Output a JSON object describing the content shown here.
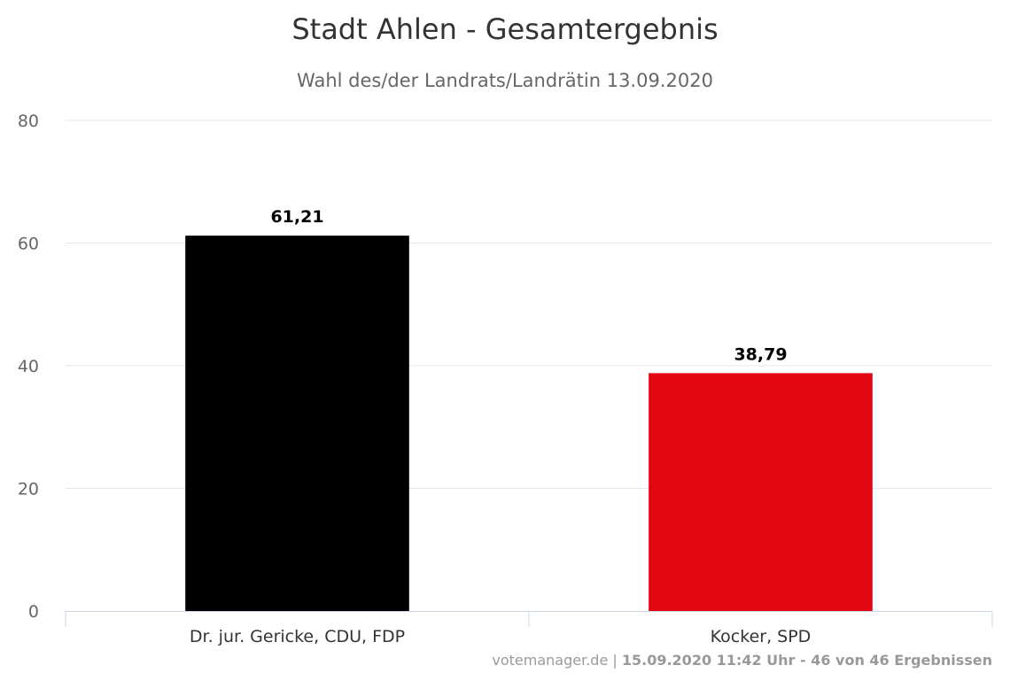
{
  "chart_data": {
    "type": "bar",
    "title": "Stadt Ahlen - Gesamtergebnis",
    "subtitle": "Wahl des/der Landrats/Landrätin 13.09.2020",
    "categories": [
      "Dr. jur. Gericke, CDU, FDP",
      "Kocker, SPD"
    ],
    "values": [
      61.21,
      38.79
    ],
    "value_labels": [
      "61,21",
      "38,79"
    ],
    "colors": [
      "#000000",
      "#e30613"
    ],
    "ylim": [
      0,
      80
    ],
    "yticks": [
      "0",
      "20",
      "40",
      "60",
      "80"
    ],
    "xlabel": "",
    "ylabel": "",
    "grid": true,
    "credits": {
      "source": "votemanager.de",
      "separator": " | ",
      "status": "15.09.2020 11:42 Uhr - 46 von 46 Ergebnissen"
    }
  }
}
